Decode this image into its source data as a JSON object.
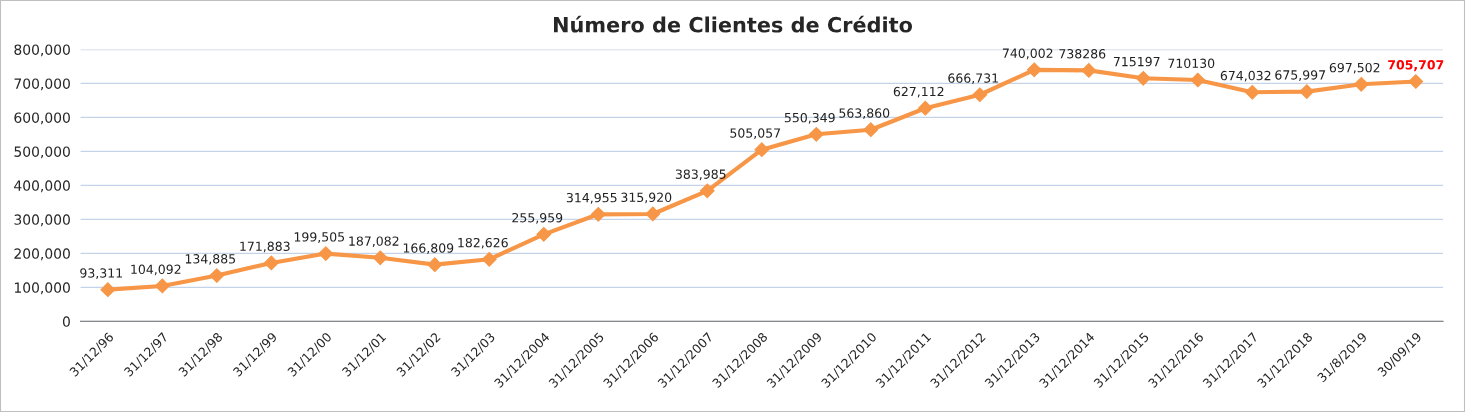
{
  "chart_data": {
    "type": "line",
    "title": "Número de Clientes de Crédito",
    "categories": [
      "31/12/96",
      "31/12/97",
      "31/12/98",
      "31/12/99",
      "31/12/00",
      "31/12/01",
      "31/12/02",
      "31/12/03",
      "31/12/2004",
      "31/12/2005",
      "31/12/2006",
      "31/12/2007",
      "31/12/2008",
      "31/12/2009",
      "31/12/2010",
      "31/12/2011",
      "31/12/2012",
      "31/12/2013",
      "31/12/2014",
      "31/12/2015",
      "31/12/2016",
      "31/12/2017",
      "31/12/2018",
      "31/8/2019",
      "30/09/19"
    ],
    "series": [
      {
        "color": "#f79646",
        "values": [
          93311,
          104092,
          134885,
          171883,
          199505,
          187082,
          166809,
          182626,
          255959,
          314955,
          315920,
          383985,
          505057,
          550349,
          563860,
          627112,
          666731,
          740002,
          738286,
          715197,
          710130,
          674032,
          675997,
          697502,
          705707
        ],
        "value_labels": [
          "93,311",
          "104,092",
          "134,885",
          "171,883",
          "199,505",
          "187,082",
          "166,809",
          "182,626",
          "255,959",
          "314,955",
          "315,920",
          "383,985",
          "505,057",
          "550,349",
          "563,860",
          "627,112",
          "666,731",
          "740,002",
          "738286",
          "715197",
          "710130",
          "674,032",
          "675,997",
          "697,502",
          "705,707"
        ]
      }
    ],
    "ylim": [
      0,
      800000
    ],
    "yticks": [
      {
        "value": 0,
        "label": "0"
      },
      {
        "value": 100000,
        "label": "100,000"
      },
      {
        "value": 200000,
        "label": "200,000"
      },
      {
        "value": 300000,
        "label": "300,000"
      },
      {
        "value": 400000,
        "label": "400,000"
      },
      {
        "value": 500000,
        "label": "500,000"
      },
      {
        "value": 600000,
        "label": "600,000"
      },
      {
        "value": 700000,
        "label": "700,000"
      },
      {
        "value": 800000,
        "label": "800,000"
      }
    ],
    "grid": "y",
    "marker": "diamond",
    "line_style": "solid",
    "legend": false
  }
}
